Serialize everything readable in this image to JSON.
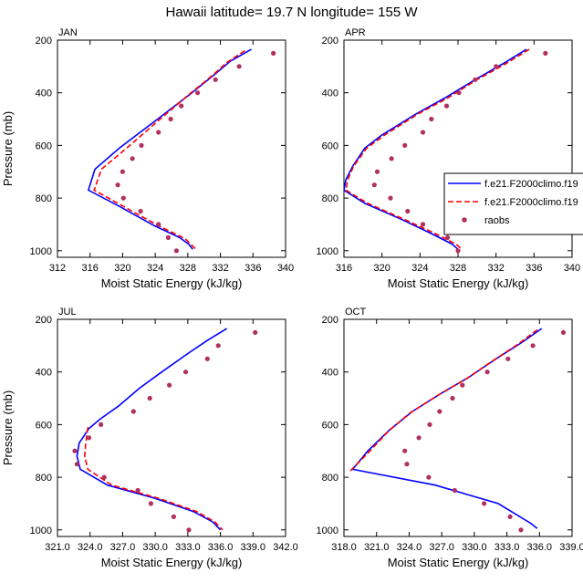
{
  "title": "Hawaii  latitude= 19.7 N longitude= 155 W",
  "colors": {
    "model1": "#0000ff",
    "model2": "#ff0000",
    "raobs": "#b03060"
  },
  "legend": {
    "placement": "right, between top panels",
    "entries": [
      {
        "label": "f.e21.F2000climo.f19",
        "style": "solid",
        "color": "#0000ff"
      },
      {
        "label": "f.e21.F2000climo.f19",
        "style": "dashed",
        "color": "#ff0000"
      },
      {
        "label": "raobs",
        "style": "marker",
        "color": "#b03060"
      }
    ]
  },
  "chart_data": [
    {
      "type": "line",
      "panel": "JAN",
      "xlabel": "Moist Static Energy (kJ/kg)",
      "ylabel": "Pressure (mb)",
      "xlim": [
        312,
        340
      ],
      "xticks": [
        312,
        316,
        320,
        324,
        328,
        332,
        336,
        340
      ],
      "xtick_labels": [
        "312",
        "316",
        "320",
        "324",
        "328",
        "332",
        "336",
        "340"
      ],
      "ylim": [
        200,
        1025
      ],
      "yticks": [
        200,
        400,
        600,
        800,
        1000
      ],
      "y_inverted": true,
      "series": [
        {
          "name": "f.e21.F2000climo.f19",
          "style": "solid",
          "points": [
            [
              335.8,
              235
            ],
            [
              333.2,
              280
            ],
            [
              331.3,
              330
            ],
            [
              328.5,
              400
            ],
            [
              324.3,
              500
            ],
            [
              319.6,
              610
            ],
            [
              316.6,
              690
            ],
            [
              315.8,
              770
            ],
            [
              319.5,
              830
            ],
            [
              323.9,
              905
            ],
            [
              327.0,
              950
            ],
            [
              328.1,
              975
            ],
            [
              328.6,
              995
            ]
          ]
        },
        {
          "name": "f.e21.F2000climo.f19",
          "style": "dashed",
          "points": [
            [
              335.0,
              240
            ],
            [
              332.8,
              285
            ],
            [
              331.0,
              335
            ],
            [
              328.4,
              400
            ],
            [
              324.6,
              500
            ],
            [
              320.5,
              610
            ],
            [
              317.4,
              690
            ],
            [
              316.5,
              770
            ],
            [
              320.0,
              830
            ],
            [
              324.4,
              905
            ],
            [
              327.7,
              955
            ],
            [
              329.0,
              995
            ]
          ]
        }
      ],
      "raobs": [
        [
          338.5,
          250
        ],
        [
          334.3,
          300
        ],
        [
          331.4,
          350
        ],
        [
          329.2,
          400
        ],
        [
          327.2,
          450
        ],
        [
          325.9,
          500
        ],
        [
          324.4,
          550
        ],
        [
          322.3,
          600
        ],
        [
          321.2,
          650
        ],
        [
          320.0,
          700
        ],
        [
          319.4,
          750
        ],
        [
          320.1,
          800
        ],
        [
          322.2,
          850
        ],
        [
          324.4,
          900
        ],
        [
          325.6,
          950
        ],
        [
          326.6,
          1000
        ]
      ]
    },
    {
      "type": "line",
      "panel": "APR",
      "xlabel": "Moist Static Energy (kJ/kg)",
      "ylabel": "",
      "xlim": [
        316,
        340
      ],
      "xticks": [
        316,
        320,
        324,
        328,
        332,
        336,
        340
      ],
      "xtick_labels": [
        "316",
        "320",
        "324",
        "328",
        "332",
        "336",
        "340"
      ],
      "ylim": [
        200,
        1025
      ],
      "yticks": [
        200,
        400,
        600,
        800,
        1000
      ],
      "y_inverted": true,
      "series": [
        {
          "name": "f.e21.F2000climo.f19",
          "style": "solid",
          "points": [
            [
              335.2,
              235
            ],
            [
              332.7,
              290
            ],
            [
              329.8,
              350
            ],
            [
              326.6,
              420
            ],
            [
              323.6,
              480
            ],
            [
              320.0,
              560
            ],
            [
              318.2,
              610
            ],
            [
              316.9,
              680
            ],
            [
              316.2,
              730
            ],
            [
              316.0,
              770
            ],
            [
              318.2,
              820
            ],
            [
              322.0,
              880
            ],
            [
              325.2,
              935
            ],
            [
              327.4,
              975
            ],
            [
              328.0,
              995
            ]
          ]
        },
        {
          "name": "f.e21.F2000climo.f19",
          "style": "dashed",
          "points": [
            [
              335.5,
              235
            ],
            [
              333.0,
              290
            ],
            [
              330.0,
              350
            ],
            [
              326.9,
              420
            ],
            [
              323.8,
              480
            ],
            [
              320.3,
              560
            ],
            [
              318.4,
              610
            ],
            [
              317.0,
              680
            ],
            [
              316.4,
              730
            ],
            [
              316.2,
              770
            ],
            [
              318.5,
              820
            ],
            [
              322.3,
              880
            ],
            [
              325.6,
              935
            ],
            [
              327.8,
              975
            ],
            [
              328.4,
              995
            ]
          ]
        }
      ],
      "raobs": [
        [
          337.2,
          250
        ],
        [
          332.0,
          300
        ],
        [
          329.8,
          350
        ],
        [
          328.1,
          400
        ],
        [
          326.8,
          450
        ],
        [
          325.2,
          500
        ],
        [
          324.3,
          550
        ],
        [
          322.4,
          600
        ],
        [
          321.0,
          650
        ],
        [
          319.5,
          700
        ],
        [
          319.2,
          750
        ],
        [
          320.9,
          800
        ],
        [
          322.7,
          850
        ],
        [
          324.3,
          900
        ],
        [
          326.9,
          950
        ],
        [
          328.0,
          1000
        ]
      ]
    },
    {
      "type": "line",
      "panel": "JUL",
      "xlabel": "Moist Static Energy (kJ/kg)",
      "ylabel": "Pressure (mb)",
      "xlim": [
        321,
        342
      ],
      "xticks": [
        321,
        324,
        327,
        330,
        333,
        336,
        339,
        342
      ],
      "xtick_labels": [
        "321.0",
        "324.0",
        "327.0",
        "330.0",
        "333.0",
        "336.0",
        "339.0",
        "342.0"
      ],
      "ylim": [
        200,
        1025
      ],
      "yticks": [
        200,
        400,
        600,
        800,
        1000
      ],
      "y_inverted": true,
      "series": [
        {
          "name": "f.e21.F2000climo.f19",
          "style": "solid",
          "points": [
            [
              336.6,
              235
            ],
            [
              334.8,
              280
            ],
            [
              333.0,
              330
            ],
            [
              330.6,
              400
            ],
            [
              328.6,
              460
            ],
            [
              326.6,
              530
            ],
            [
              324.9,
              580
            ],
            [
              323.9,
              615
            ],
            [
              323.0,
              670
            ],
            [
              322.8,
              720
            ],
            [
              323.1,
              770
            ],
            [
              325.6,
              830
            ],
            [
              330.0,
              880
            ],
            [
              333.5,
              930
            ],
            [
              335.3,
              970
            ],
            [
              336.0,
              1000
            ]
          ]
        },
        {
          "name": "f.e21.F2000climo.f19",
          "style": "dashed",
          "points": [
            [
              323.8,
              610
            ],
            [
              323.6,
              670
            ],
            [
              323.5,
              720
            ],
            [
              323.8,
              770
            ],
            [
              326.0,
              830
            ],
            [
              330.3,
              880
            ],
            [
              333.8,
              930
            ],
            [
              335.5,
              970
            ],
            [
              336.2,
              1000
            ]
          ]
        }
      ],
      "raobs": [
        [
          339.2,
          250
        ],
        [
          335.8,
          300
        ],
        [
          334.8,
          350
        ],
        [
          332.8,
          400
        ],
        [
          331.3,
          450
        ],
        [
          329.5,
          500
        ],
        [
          328.0,
          550
        ],
        [
          325.0,
          600
        ],
        [
          323.9,
          650
        ],
        [
          322.6,
          700
        ],
        [
          322.8,
          750
        ],
        [
          325.3,
          800
        ],
        [
          328.4,
          850
        ],
        [
          329.6,
          900
        ],
        [
          331.7,
          950
        ],
        [
          333.1,
          1000
        ]
      ]
    },
    {
      "type": "line",
      "panel": "OCT",
      "xlabel": "Moist Static Energy (kJ/kg)",
      "ylabel": "",
      "xlim": [
        318,
        339
      ],
      "xticks": [
        318,
        321,
        324,
        327,
        330,
        333,
        336,
        339
      ],
      "xtick_labels": [
        "318.0",
        "321.0",
        "324.0",
        "327.0",
        "330.0",
        "333.0",
        "336.0",
        "339.0"
      ],
      "ylim": [
        200,
        1025
      ],
      "yticks": [
        200,
        400,
        600,
        800,
        1000
      ],
      "y_inverted": true,
      "series": [
        {
          "name": "f.e21.F2000climo.f19",
          "style": "solid",
          "points": [
            [
              336.2,
              235
            ],
            [
              334.3,
              290
            ],
            [
              332.0,
              350
            ],
            [
              329.5,
              420
            ],
            [
              327.0,
              480
            ],
            [
              324.3,
              550
            ],
            [
              322.2,
              620
            ],
            [
              320.2,
              700
            ],
            [
              318.8,
              770
            ],
            [
              326.4,
              830
            ],
            [
              332.2,
              900
            ],
            [
              335.2,
              975
            ],
            [
              335.8,
              995
            ]
          ]
        },
        {
          "name": "f.e21.F2000climo.f19",
          "style": "dashed",
          "points": [
            [
              335.8,
              240
            ],
            [
              334.0,
              295
            ],
            [
              331.8,
              355
            ],
            [
              329.3,
              425
            ],
            [
              326.8,
              485
            ],
            [
              324.1,
              555
            ],
            [
              322.1,
              625
            ],
            [
              320.4,
              700
            ],
            [
              318.6,
              775
            ]
          ]
        }
      ],
      "raobs": [
        [
          338.2,
          250
        ],
        [
          335.4,
          300
        ],
        [
          333.1,
          350
        ],
        [
          331.2,
          400
        ],
        [
          328.9,
          450
        ],
        [
          328.0,
          500
        ],
        [
          326.8,
          550
        ],
        [
          325.9,
          600
        ],
        [
          324.9,
          650
        ],
        [
          323.6,
          700
        ],
        [
          323.8,
          750
        ],
        [
          325.8,
          800
        ],
        [
          328.2,
          850
        ],
        [
          330.9,
          900
        ],
        [
          333.3,
          950
        ],
        [
          334.3,
          1000
        ]
      ]
    }
  ]
}
